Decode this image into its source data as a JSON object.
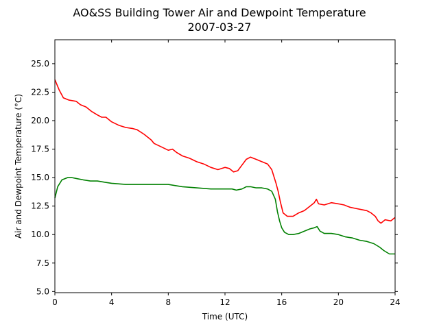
{
  "chart_data": {
    "type": "line",
    "title": "AO&SS Building Tower Air and Dewpoint Temperature",
    "subtitle": "2007-03-27",
    "xlabel": "Time (UTC)",
    "ylabel": "Air and Dewpoint Temperature (°C)",
    "xlim": [
      0,
      24
    ],
    "ylim": [
      4.9,
      27.1
    ],
    "xticks": [
      0,
      4,
      8,
      12,
      16,
      20,
      24
    ],
    "yticks": [
      5.0,
      7.5,
      10.0,
      12.5,
      15.0,
      17.5,
      20.0,
      22.5,
      25.0
    ],
    "grid": false,
    "legend": "none",
    "series": [
      {
        "color": "#ff0000",
        "x": [
          0,
          0.3,
          0.6,
          1.0,
          1.5,
          1.8,
          2.2,
          2.6,
          3.0,
          3.3,
          3.6,
          4.0,
          4.5,
          5.0,
          5.5,
          5.8,
          6.3,
          6.8,
          7.0,
          7.5,
          8.0,
          8.3,
          8.6,
          9.0,
          9.5,
          10.0,
          10.5,
          11.0,
          11.5,
          12.0,
          12.3,
          12.6,
          12.9,
          13.2,
          13.5,
          13.8,
          14.2,
          14.6,
          15.0,
          15.3,
          15.6,
          15.75,
          15.9,
          16.1,
          16.4,
          16.8,
          17.2,
          17.6,
          18.0,
          18.3,
          18.45,
          18.6,
          19.0,
          19.5,
          20.0,
          20.4,
          20.8,
          21.2,
          21.6,
          22.0,
          22.3,
          22.6,
          22.8,
          23.0,
          23.3,
          23.7,
          24.0
        ],
        "values": [
          23.6,
          22.7,
          22.0,
          21.8,
          21.7,
          21.4,
          21.2,
          20.8,
          20.5,
          20.3,
          20.3,
          19.9,
          19.6,
          19.4,
          19.3,
          19.2,
          18.8,
          18.3,
          18.0,
          17.7,
          17.4,
          17.5,
          17.2,
          16.9,
          16.7,
          16.4,
          16.2,
          15.9,
          15.7,
          15.9,
          15.8,
          15.5,
          15.6,
          16.1,
          16.6,
          16.8,
          16.6,
          16.4,
          16.2,
          15.7,
          14.5,
          13.8,
          12.9,
          11.9,
          11.6,
          11.6,
          11.9,
          12.1,
          12.5,
          12.8,
          13.1,
          12.7,
          12.6,
          12.8,
          12.7,
          12.6,
          12.4,
          12.3,
          12.2,
          12.1,
          11.9,
          11.6,
          11.2,
          11.0,
          11.3,
          11.2,
          11.5
        ]
      },
      {
        "color": "#008000",
        "x": [
          0,
          0.2,
          0.5,
          0.9,
          1.2,
          1.6,
          2.0,
          2.5,
          3.0,
          3.5,
          4.0,
          5.0,
          5.5,
          6.0,
          7.0,
          8.0,
          8.5,
          9.0,
          10.0,
          11.0,
          12.0,
          12.5,
          12.8,
          13.2,
          13.5,
          13.8,
          14.2,
          14.6,
          15.0,
          15.3,
          15.55,
          15.7,
          15.85,
          16.0,
          16.2,
          16.5,
          16.8,
          17.2,
          17.6,
          18.0,
          18.3,
          18.5,
          18.7,
          19.0,
          19.5,
          20.0,
          20.5,
          21.0,
          21.5,
          22.0,
          22.5,
          22.9,
          23.2,
          23.6,
          24.0
        ],
        "values": [
          13.2,
          14.2,
          14.8,
          15.0,
          15.0,
          14.9,
          14.8,
          14.7,
          14.7,
          14.6,
          14.5,
          14.4,
          14.4,
          14.4,
          14.4,
          14.4,
          14.3,
          14.2,
          14.1,
          14.0,
          14.0,
          14.0,
          13.9,
          14.0,
          14.2,
          14.2,
          14.1,
          14.1,
          14.0,
          13.8,
          13.1,
          12.0,
          11.2,
          10.6,
          10.2,
          10.0,
          10.0,
          10.1,
          10.3,
          10.5,
          10.6,
          10.7,
          10.3,
          10.1,
          10.1,
          10.0,
          9.8,
          9.7,
          9.5,
          9.4,
          9.2,
          8.9,
          8.6,
          8.3,
          8.3
        ]
      }
    ]
  }
}
